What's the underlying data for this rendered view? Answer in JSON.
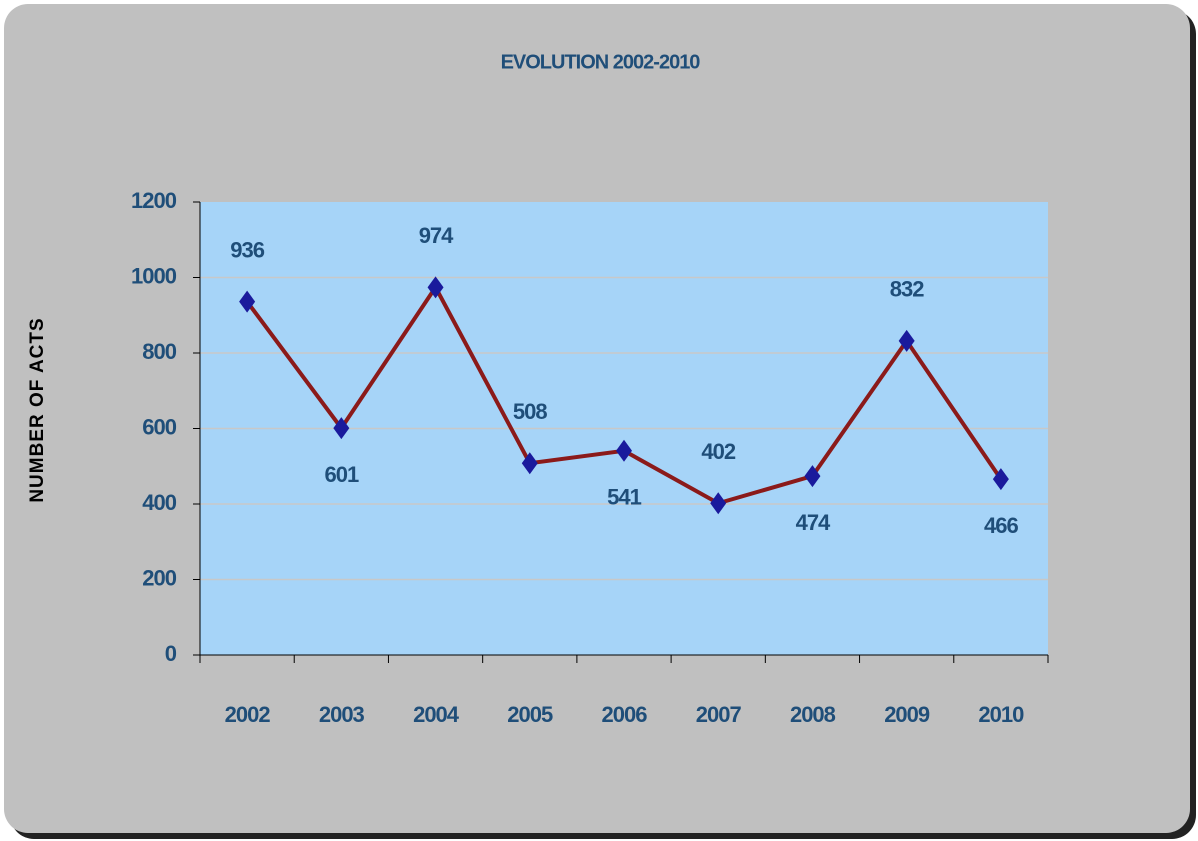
{
  "chart_data": {
    "type": "line",
    "title": "EVOLUTION 2002-2010",
    "y_label": "NUMBER OF ACTS",
    "categories": [
      "2002",
      "2003",
      "2004",
      "2005",
      "2006",
      "2007",
      "2008",
      "2009",
      "2010"
    ],
    "values": [
      936,
      601,
      974,
      508,
      541,
      402,
      474,
      832,
      466
    ],
    "line_color": "#8b1a1a",
    "marker_color": "#1a1a9c",
    "ylim": [
      0,
      1200
    ],
    "yticks": [
      0,
      200,
      400,
      600,
      800,
      1000,
      1200
    ],
    "grid": true
  }
}
